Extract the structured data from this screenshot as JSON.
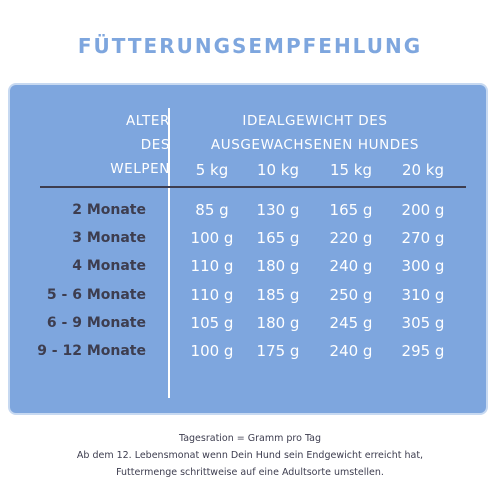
{
  "title": "FÜTTERUNGSEMPFEHLUNG",
  "table": {
    "age_header": [
      "ALTER",
      "DES",
      "WELPEN"
    ],
    "weight_header": [
      "IDEALGEWICHT DES",
      "AUSGEWACHSENEN HUNDES"
    ],
    "columns": [
      "5 kg",
      "10 kg",
      "15 kg",
      "20 kg"
    ],
    "rows": [
      {
        "label": "2 Monate",
        "values": [
          "85 g",
          "130 g",
          "165 g",
          "200 g"
        ]
      },
      {
        "label": "3 Monate",
        "values": [
          "100 g",
          "165 g",
          "220 g",
          "270 g"
        ]
      },
      {
        "label": "4 Monate",
        "values": [
          "110 g",
          "180 g",
          "240 g",
          "300 g"
        ]
      },
      {
        "label": "5 - 6 Monate",
        "values": [
          "110 g",
          "185 g",
          "250 g",
          "310 g"
        ]
      },
      {
        "label": "6 - 9 Monate",
        "values": [
          "105 g",
          "180 g",
          "245 g",
          "305 g"
        ]
      },
      {
        "label": "9 - 12 Monate",
        "values": [
          "100 g",
          "175 g",
          "240 g",
          "295 g"
        ]
      }
    ]
  },
  "footer": {
    "line1": "Tagesration = Gramm pro Tag",
    "line2": "Ab dem 12. Lebensmonat wenn Dein Hund sein Endgewicht erreicht hat,",
    "line3": "Futtermenge schrittweise auf eine Adultsorte umstellen."
  },
  "colors": {
    "panel": "#7ea6de",
    "title": "#7ea6de",
    "dark_text": "#3d3d4f",
    "light_text": "#ffffff"
  }
}
